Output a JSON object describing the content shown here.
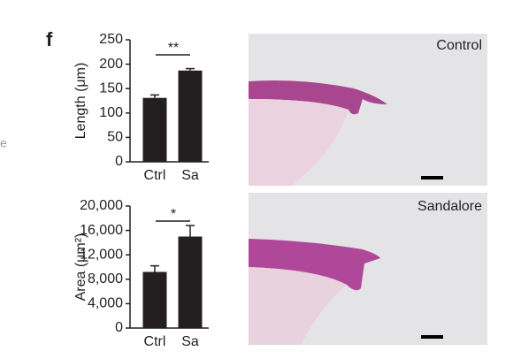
{
  "panel_label": "f",
  "side_label": "e",
  "chart_data": [
    {
      "type": "bar",
      "ylabel": "Length (μm)",
      "categories": [
        "Ctrl",
        "Sa"
      ],
      "values": [
        131,
        187
      ],
      "errors": [
        6,
        4
      ],
      "color": "#231f20",
      "ylim": [
        0,
        250
      ],
      "yticks": [
        0,
        50,
        100,
        150,
        200,
        250
      ],
      "significance": "**"
    },
    {
      "type": "bar",
      "ylabel": "Area (μm²)",
      "categories": [
        "Ctrl",
        "Sa"
      ],
      "values": [
        9200,
        15000
      ],
      "errors": [
        1000,
        1800
      ],
      "color": "#231f20",
      "ylim": [
        0,
        20000
      ],
      "yticks": [
        0,
        {
          "value": 4000,
          "label": "4,000"
        },
        {
          "value": 8000,
          "label": "8,000"
        },
        {
          "value": 12000,
          "label": "12,000"
        },
        {
          "value": 16000,
          "label": "16,000"
        },
        {
          "value": 20000,
          "label": "20,000"
        }
      ],
      "significance": "*"
    }
  ],
  "images": [
    {
      "label": "Control"
    },
    {
      "label": "Sandalore"
    }
  ]
}
